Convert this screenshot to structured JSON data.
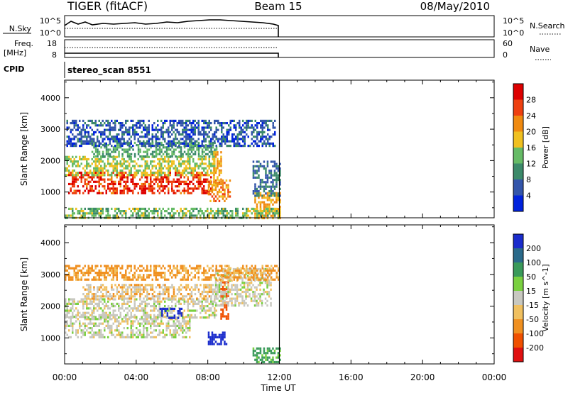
{
  "header": {
    "station": "TIGER (fitACF)",
    "beam": "Beam 15",
    "date": "08/May/2010"
  },
  "top_panels": {
    "nsky_label": "N.Sky",
    "nsky_ticks": [
      "10^5",
      "10^0"
    ],
    "nsearch_label": "N.Search",
    "nsearch_ticks": [
      "10^5",
      "10^0"
    ],
    "freq_label": "Freq.",
    "freq_unit": "[MHz]",
    "freq_ticks": [
      "18",
      "8"
    ],
    "nave_label": "Nave",
    "nave_ticks": [
      "60",
      "0"
    ],
    "cpid_label": "CPID",
    "cpid_value": "stereo_scan 8551"
  },
  "chart_data": [
    {
      "type": "heatmap",
      "title": "",
      "quantity": "Power",
      "xlabel": "Time UT",
      "ylabel": "Slant Range [km]",
      "x_ticks": [
        "00:00",
        "04:00",
        "08:00",
        "12:00",
        "16:00",
        "20:00",
        "00:00"
      ],
      "x_range_hours": [
        0,
        24
      ],
      "data_end_hour": 12,
      "y_ticks": [
        1000,
        2000,
        3000,
        4000
      ],
      "ylim": [
        180,
        4560
      ],
      "colorbar": {
        "label": "Power [dB]",
        "ticks": [
          4,
          8,
          12,
          16,
          20,
          24,
          28
        ],
        "range": [
          0,
          32
        ],
        "colors": [
          "#0022dd",
          "#3355aa",
          "#3c8a6a",
          "#66bb66",
          "#f0c020",
          "#f08a10",
          "#ee4010",
          "#dd0000"
        ]
      },
      "regions": [
        {
          "t0": 0.2,
          "t1": 8.2,
          "r0": 950,
          "r1": 1650,
          "value": 27
        },
        {
          "t0": 0.0,
          "t1": 8.5,
          "r0": 1550,
          "r1": 2150,
          "value": 16
        },
        {
          "t0": 1.5,
          "t1": 8.5,
          "r0": 2100,
          "r1": 2600,
          "value": 12
        },
        {
          "t0": 8.0,
          "t1": 9.2,
          "r0": 700,
          "r1": 1400,
          "value": 22
        },
        {
          "t0": 8.3,
          "t1": 8.7,
          "r0": 1200,
          "r1": 2300,
          "value": 20
        },
        {
          "t0": 10.6,
          "t1": 12.0,
          "r0": 200,
          "r1": 1000,
          "value": 20
        },
        {
          "t0": 10.5,
          "t1": 12.0,
          "r0": 900,
          "r1": 2000,
          "value": 8
        },
        {
          "t0": 0.1,
          "t1": 11.8,
          "r0": 2500,
          "r1": 3300,
          "value": 6
        },
        {
          "t0": 0.0,
          "t1": 12.0,
          "r0": 200,
          "r1": 500,
          "value": 14
        }
      ]
    },
    {
      "type": "heatmap",
      "title": "",
      "quantity": "Velocity",
      "xlabel": "Time UT",
      "ylabel": "Slant Range [km]",
      "x_ticks": [
        "00:00",
        "04:00",
        "08:00",
        "12:00",
        "16:00",
        "20:00",
        "00:00"
      ],
      "x_range_hours": [
        0,
        24
      ],
      "data_end_hour": 12,
      "y_ticks": [
        1000,
        2000,
        3000,
        4000
      ],
      "ylim": [
        180,
        4560
      ],
      "colorbar": {
        "label": "Velocity [m s^-1]",
        "ticks": [
          "200",
          "100",
          "50",
          "15",
          "-15",
          "-50",
          "-100",
          "-200"
        ],
        "colors": [
          "#1a2ccc",
          "#2a6a8a",
          "#3a9a5a",
          "#7ad040",
          "#c8c8c0",
          "#f0c060",
          "#f09020",
          "#f05000",
          "#e01010"
        ]
      },
      "regions": [
        {
          "t0": 0.0,
          "t1": 7.0,
          "r0": 1050,
          "r1": 1700,
          "value": 0
        },
        {
          "t0": 0.0,
          "t1": 8.5,
          "r0": 1650,
          "r1": 2250,
          "value": 0
        },
        {
          "t0": 1.0,
          "t1": 8.5,
          "r0": 2200,
          "r1": 2700,
          "value": -20
        },
        {
          "t0": 5.3,
          "t1": 6.5,
          "r0": 1650,
          "r1": 1950,
          "value": 220
        },
        {
          "t0": 8.0,
          "t1": 9.0,
          "r0": 780,
          "r1": 1200,
          "value": 180
        },
        {
          "t0": 8.7,
          "t1": 9.1,
          "r0": 1600,
          "r1": 3000,
          "value": -120
        },
        {
          "t0": 8.4,
          "t1": 11.5,
          "r0": 2000,
          "r1": 3200,
          "value": 0
        },
        {
          "t0": 10.5,
          "t1": 12.0,
          "r0": 200,
          "r1": 700,
          "value": 40
        },
        {
          "t0": 0.0,
          "t1": 12.0,
          "r0": 2800,
          "r1": 3300,
          "value": -40
        }
      ]
    }
  ]
}
